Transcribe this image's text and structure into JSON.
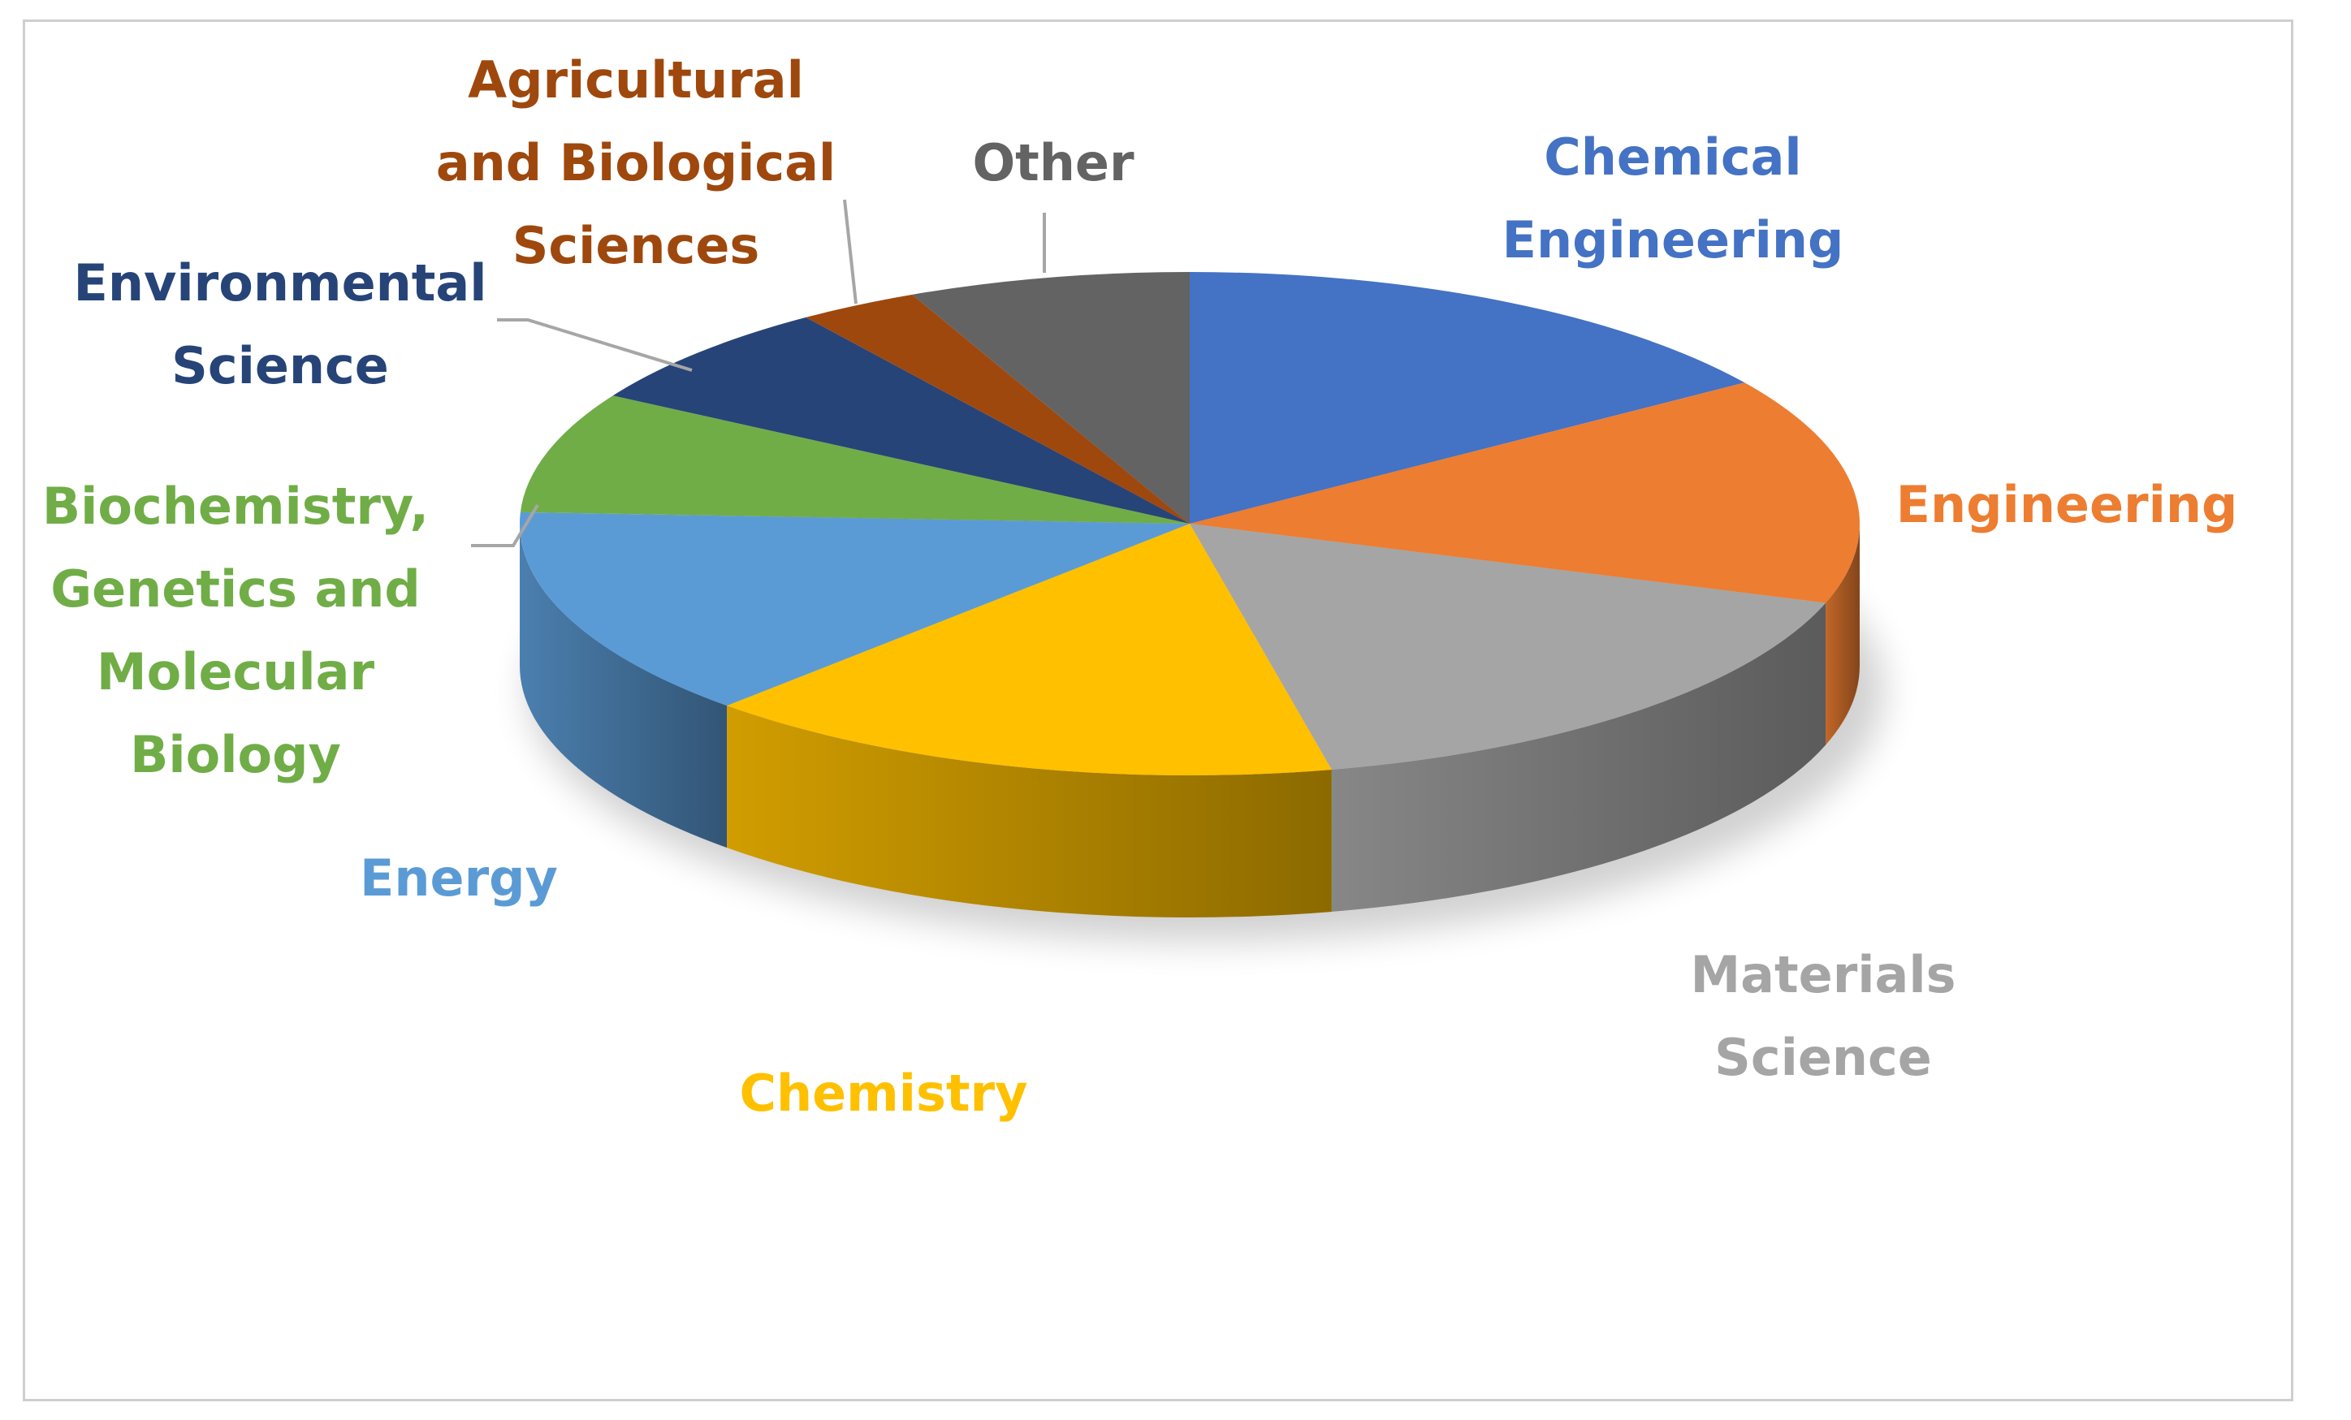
{
  "chart_data": {
    "type": "pie",
    "title": "",
    "slices": [
      {
        "label": "Chemical Engineering",
        "lines": [
          "Chemical",
          "Engineering"
        ],
        "value": 16,
        "color": "#4472C4"
      },
      {
        "label": "Engineering",
        "lines": [
          "Engineering"
        ],
        "value": 15,
        "color": "#ED7D31"
      },
      {
        "label": "Materials Science",
        "lines": [
          "Materials",
          "Science"
        ],
        "value": 17,
        "color": "#A5A5A5"
      },
      {
        "label": "Chemistry",
        "lines": [
          "Chemistry"
        ],
        "value": 16,
        "color": "#FFC000"
      },
      {
        "label": "Energy",
        "lines": [
          "Energy"
        ],
        "value": 14,
        "color": "#5B9BD5"
      },
      {
        "label": "Biochemistry, Genetics and Molecular Biology",
        "lines": [
          "Biochemistry,",
          "Genetics and",
          "Molecular",
          "Biology"
        ],
        "value": 8,
        "color": "#70AD47"
      },
      {
        "label": "Environmental Science",
        "lines": [
          "Environmental",
          "Science"
        ],
        "value": 7,
        "color": "#264478"
      },
      {
        "label": "Agricultural and Biological Sciences",
        "lines": [
          "Agricultural",
          "and Biological",
          "Sciences"
        ],
        "value": 3,
        "color": "#9E480E"
      },
      {
        "label": "Other",
        "lines": [
          "Other"
        ],
        "value": 7,
        "color": "#636363"
      }
    ],
    "legend": "none",
    "style": "3d-pie"
  }
}
